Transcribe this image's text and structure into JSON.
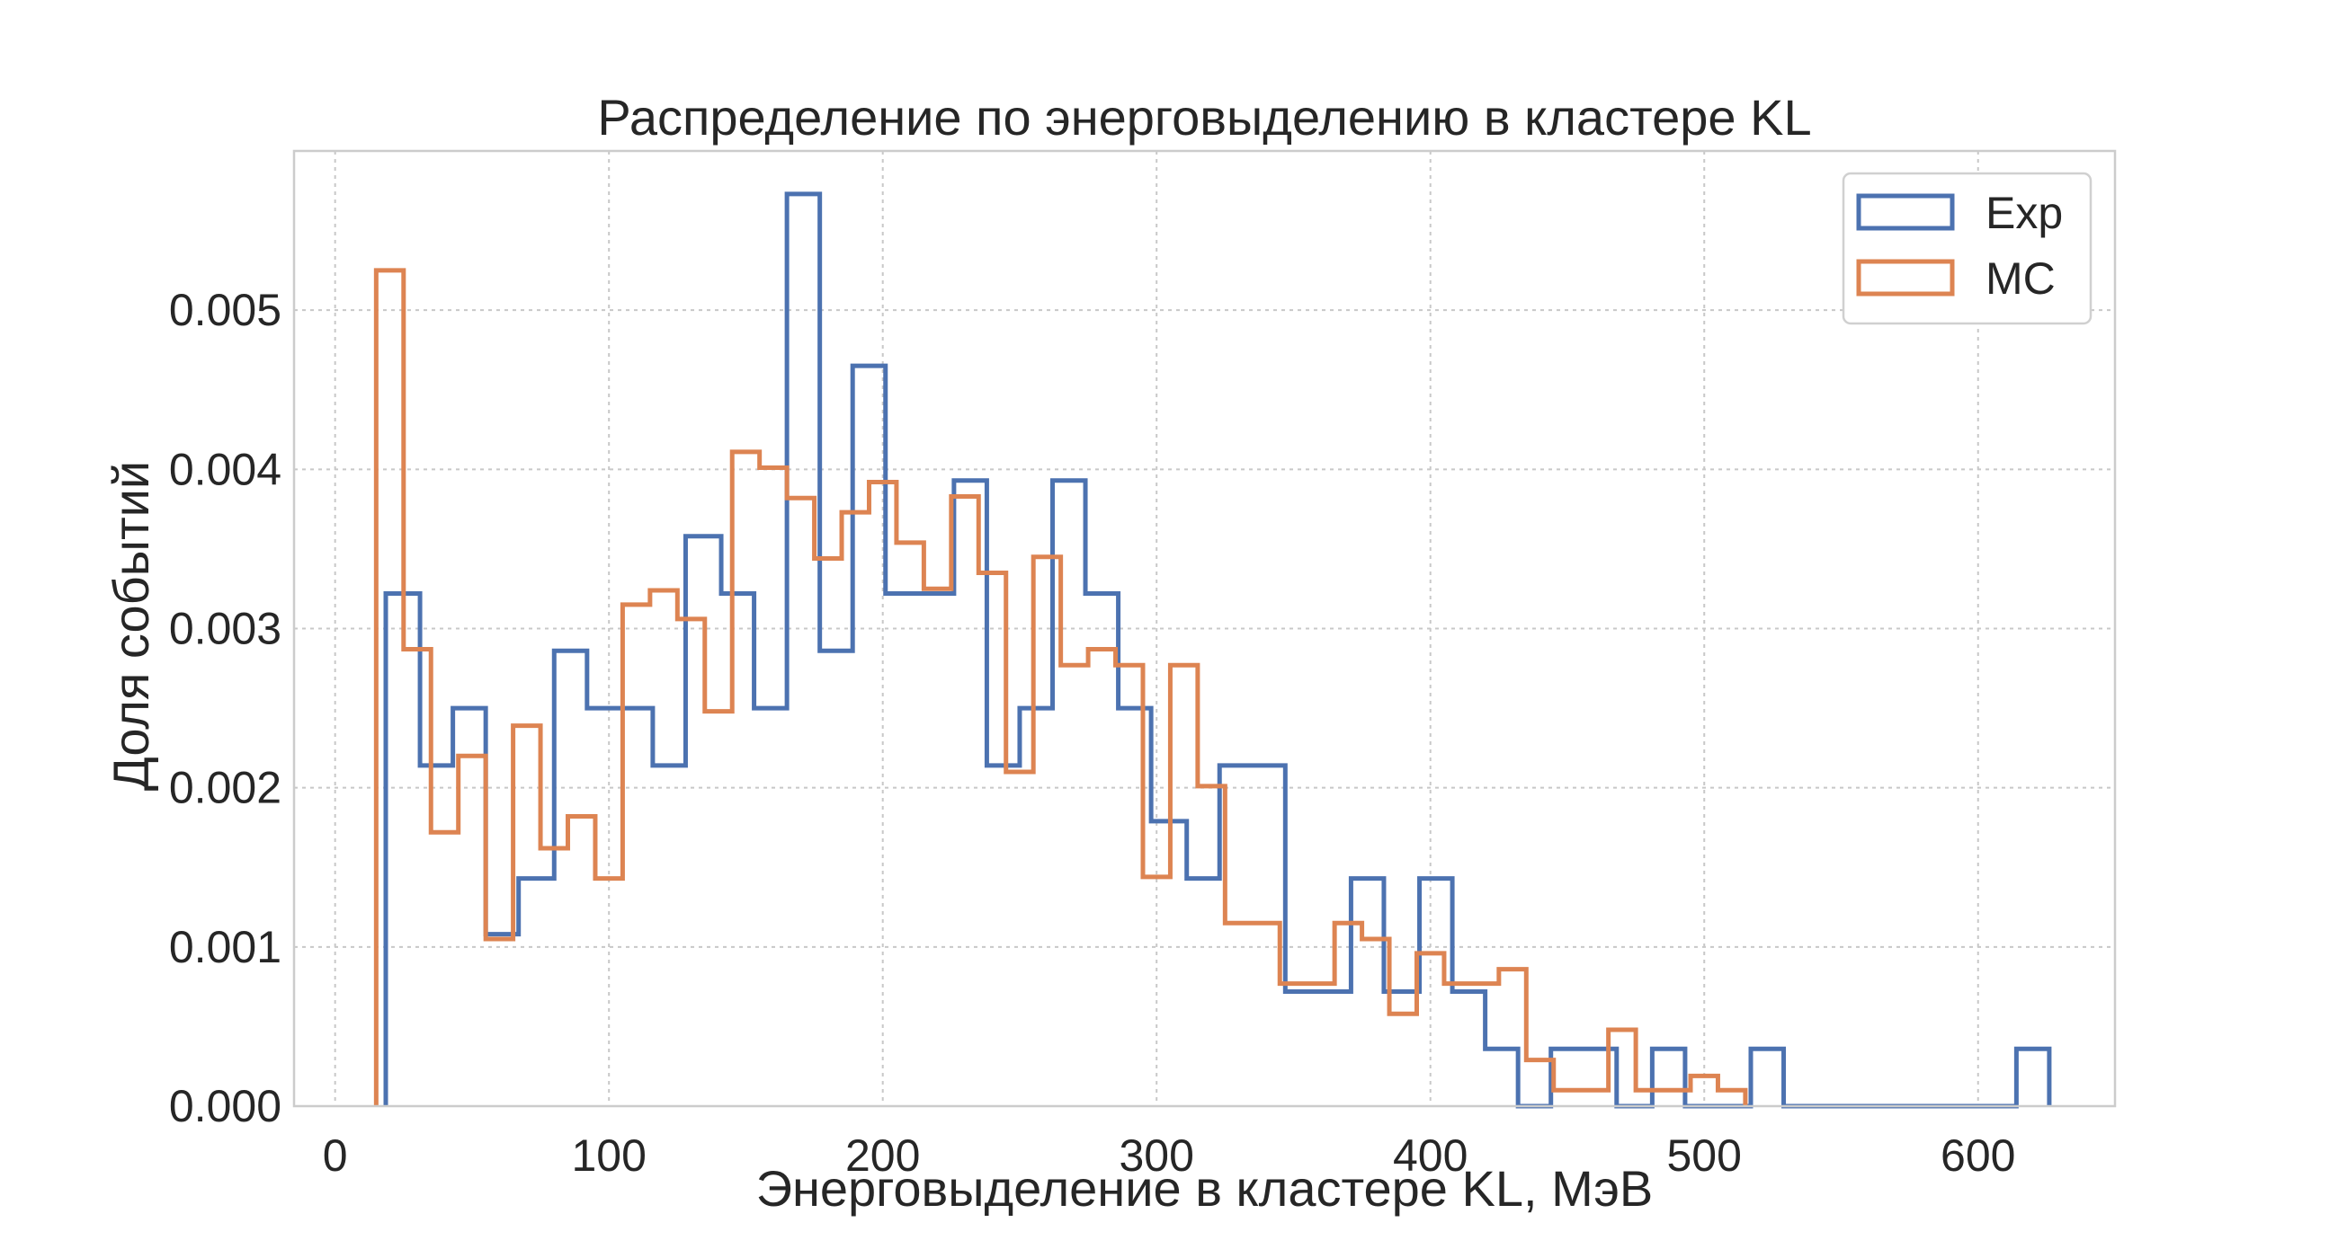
{
  "chart_data": {
    "type": "histogram",
    "title": "Распределение по энерговыделению в кластере KL",
    "xlabel": "Энерговыделение в кластере KL, МэВ",
    "ylabel": "Доля событий",
    "xlim": [
      -15,
      650
    ],
    "ylim": [
      0,
      0.006
    ],
    "xticks": [
      0,
      100,
      200,
      300,
      400,
      500,
      600
    ],
    "xtick_labels": [
      "0",
      "100",
      "200",
      "300",
      "400",
      "500",
      "600"
    ],
    "yticks": [
      0,
      0.001,
      0.002,
      0.003,
      0.004,
      0.005
    ],
    "ytick_labels": [
      "0.000",
      "0.001",
      "0.002",
      "0.003",
      "0.004",
      "0.005"
    ],
    "grid": true,
    "legend_position": "top-right",
    "series": [
      {
        "name": "Exp",
        "color": "#4c72b0",
        "edges": [
          18.5,
          31,
          43,
          55,
          67,
          80,
          92,
          104,
          116,
          128,
          141,
          153,
          165,
          177,
          189,
          201,
          213,
          226,
          238,
          250,
          262,
          274,
          286,
          298,
          311,
          323,
          335,
          347,
          359,
          371,
          383,
          396,
          408,
          420,
          432,
          444,
          456,
          468,
          481,
          493,
          505,
          517,
          529,
          541,
          553,
          566,
          578,
          590,
          602,
          614,
          626
        ],
        "values": [
          0.00322,
          0.00214,
          0.0025,
          0.00108,
          0.00143,
          0.00286,
          0.0025,
          0.0025,
          0.00214,
          0.00358,
          0.00322,
          0.0025,
          0.00573,
          0.00286,
          0.00465,
          0.00322,
          0.00322,
          0.00393,
          0.00214,
          0.0025,
          0.00393,
          0.00322,
          0.0025,
          0.00179,
          0.00143,
          0.00214,
          0.00214,
          0.00072,
          0.00072,
          0.00143,
          0.00072,
          0.00143,
          0.00072,
          0.00036,
          0.0,
          0.00036,
          0.00036,
          0.0,
          0.00036,
          0.0,
          0.0,
          0.00036,
          0.0,
          0.0,
          0.0,
          0.0,
          0.0,
          0.0,
          0.0,
          0.00036
        ]
      },
      {
        "name": "MC",
        "color": "#dd8452",
        "edges": [
          15,
          25,
          35,
          45,
          55,
          65,
          75,
          85,
          95,
          105,
          115,
          125,
          135,
          145,
          155,
          165,
          175,
          185,
          195,
          205,
          215,
          225,
          235,
          245,
          255,
          265,
          275,
          285,
          295,
          305,
          315,
          325,
          335,
          345,
          355,
          365,
          375,
          385,
          395,
          405,
          415,
          425,
          435,
          445,
          455,
          465,
          475,
          485,
          495,
          505,
          515
        ],
        "values": [
          0.00525,
          0.00287,
          0.00172,
          0.0022,
          0.00105,
          0.00239,
          0.00162,
          0.00182,
          0.00143,
          0.00315,
          0.00324,
          0.00306,
          0.00248,
          0.00411,
          0.00401,
          0.00382,
          0.00344,
          0.00373,
          0.00392,
          0.00354,
          0.00325,
          0.00383,
          0.00335,
          0.0021,
          0.00345,
          0.00277,
          0.00287,
          0.00277,
          0.00144,
          0.00277,
          0.00201,
          0.00115,
          0.00115,
          0.00077,
          0.00077,
          0.00115,
          0.00105,
          0.00058,
          0.00096,
          0.00077,
          0.00077,
          0.00086,
          0.00029,
          0.0001,
          0.0001,
          0.00048,
          0.0001,
          0.0001,
          0.00019,
          0.0001
        ]
      }
    ]
  }
}
